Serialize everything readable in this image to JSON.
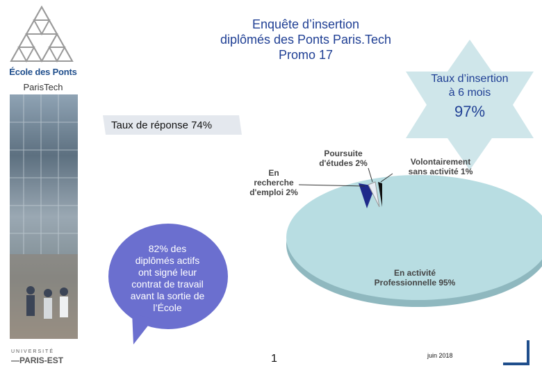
{
  "header": {
    "title_line1": "Enquête d’insertion",
    "title_line2": "diplômés des Ponts Paris.Tech",
    "title_line3": "Promo 17"
  },
  "branding": {
    "school_name": "École des Ponts",
    "school_sub": "ParisTech",
    "university_top": "UNIVERSITÉ",
    "university_bottom": "—PARIS-EST"
  },
  "star": {
    "label_line1": "Taux d’insertion",
    "label_line2": "à 6 mois",
    "value": "97%",
    "color": "#cfe6ea"
  },
  "response": {
    "label": "Taux de réponse 74%"
  },
  "bubble": {
    "text_line1": "82% des",
    "text_line2": "diplômés actifs",
    "text_line3": "ont signé leur",
    "text_line4": "contrat de travail",
    "text_line5": "avant la sortie de",
    "text_line6": "l’École",
    "color": "#6b6fcf"
  },
  "chart_data": {
    "type": "pie",
    "slices": [
      {
        "label": "En activité Professionnelle 95%",
        "value": 95,
        "color": "#b8dde2"
      },
      {
        "label": "En recherche d'emploi 2%",
        "value": 2,
        "color": "#1f2a8a"
      },
      {
        "label": "Poursuite d'études 2%",
        "value": 2,
        "color": "#e8edf5"
      },
      {
        "label": "Volontairement sans activité 1%",
        "value": 1,
        "color": "#111111"
      }
    ],
    "labels": {
      "activite_l1": "En activité",
      "activite_l2": "Professionnelle 95%",
      "recherche_l1": "En",
      "recherche_l2": "recherche",
      "recherche_l3": "d'emploi 2%",
      "etudes_l1": "Poursuite",
      "etudes_l2": "d'études 2%",
      "volont_l1": "Volontairement",
      "volont_l2": "sans activité 1%"
    }
  },
  "footer": {
    "page_number": "1",
    "date": "juin 2018"
  }
}
